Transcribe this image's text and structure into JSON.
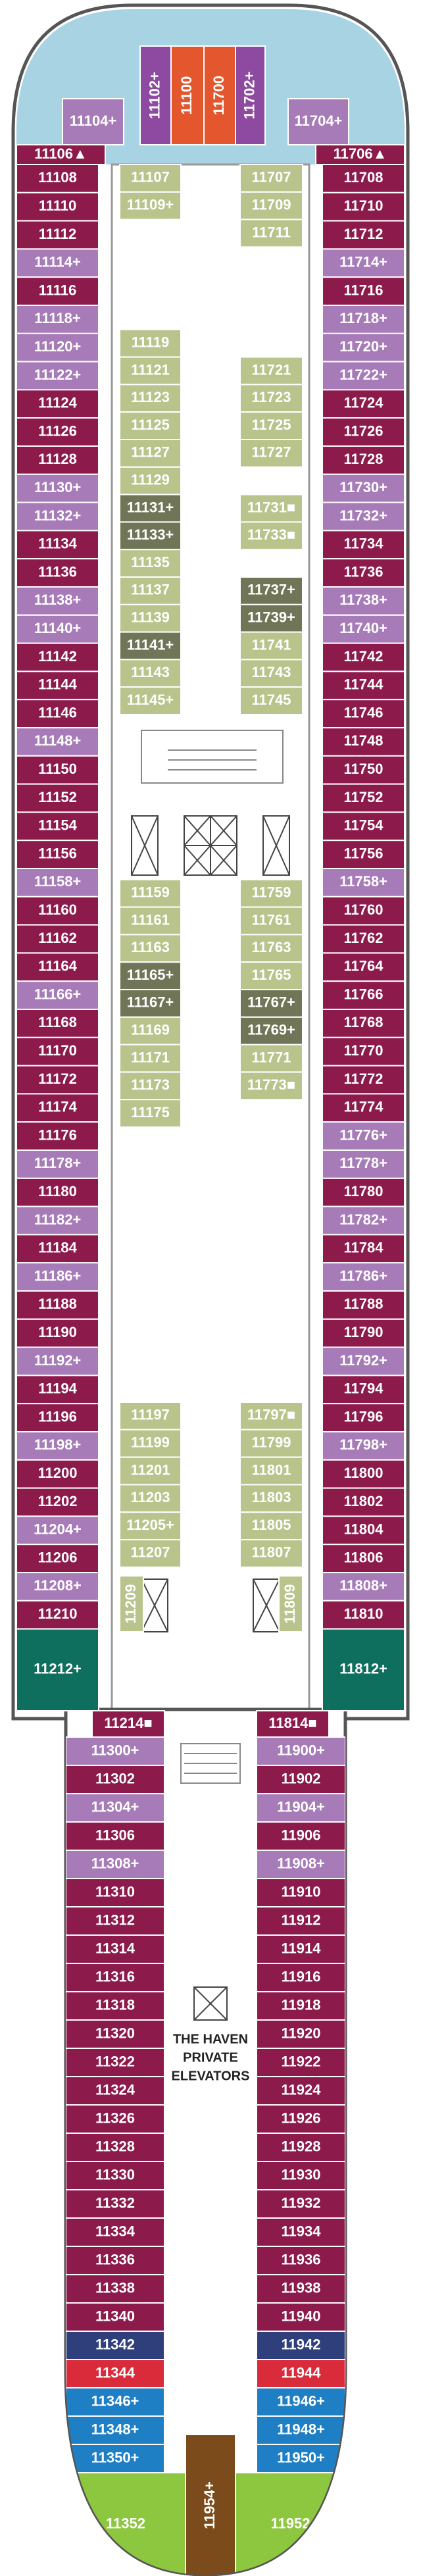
{
  "header_cabins": [
    {
      "label": "11104+",
      "color": "#a77bb8"
    },
    {
      "label": "11102+",
      "color": "#8e4aa0"
    },
    {
      "label": "11100",
      "color": "#e4572e"
    },
    {
      "label": "11700",
      "color": "#e4572e"
    },
    {
      "label": "11702+",
      "color": "#8e4aa0"
    },
    {
      "label": "11704+",
      "color": "#a77bb8"
    }
  ],
  "bow_cabins": [
    {
      "label": "11106▲",
      "color": "#8c1a4b"
    },
    {
      "label": "11706▲",
      "color": "#8c1a4b"
    }
  ],
  "port_cabins": [
    {
      "label": "11108",
      "color": "#8c1a4b"
    },
    {
      "label": "11110",
      "color": "#8c1a4b"
    },
    {
      "label": "11112",
      "color": "#8c1a4b"
    },
    {
      "label": "11114+",
      "color": "#a77bb8"
    },
    {
      "label": "11116",
      "color": "#8c1a4b"
    },
    {
      "label": "11118+",
      "color": "#a77bb8"
    },
    {
      "label": "11120+",
      "color": "#a77bb8"
    },
    {
      "label": "11122+",
      "color": "#a77bb8"
    },
    {
      "label": "11124",
      "color": "#8c1a4b"
    },
    {
      "label": "11126",
      "color": "#8c1a4b"
    },
    {
      "label": "11128",
      "color": "#8c1a4b"
    },
    {
      "label": "11130+",
      "color": "#a77bb8"
    },
    {
      "label": "11132+",
      "color": "#a77bb8"
    },
    {
      "label": "11134",
      "color": "#8c1a4b"
    },
    {
      "label": "11136",
      "color": "#8c1a4b"
    },
    {
      "label": "11138+",
      "color": "#a77bb8"
    },
    {
      "label": "11140+",
      "color": "#a77bb8"
    },
    {
      "label": "11142",
      "color": "#8c1a4b"
    },
    {
      "label": "11144",
      "color": "#8c1a4b"
    },
    {
      "label": "11146",
      "color": "#8c1a4b"
    },
    {
      "label": "11148+",
      "color": "#a77bb8"
    },
    {
      "label": "11150",
      "color": "#8c1a4b"
    },
    {
      "label": "11152",
      "color": "#8c1a4b"
    },
    {
      "label": "11154",
      "color": "#8c1a4b"
    },
    {
      "label": "11156",
      "color": "#8c1a4b"
    },
    {
      "label": "11158+",
      "color": "#a77bb8"
    },
    {
      "label": "11160",
      "color": "#8c1a4b"
    },
    {
      "label": "11162",
      "color": "#8c1a4b"
    },
    {
      "label": "11164",
      "color": "#8c1a4b"
    },
    {
      "label": "11166+",
      "color": "#a77bb8"
    },
    {
      "label": "11168",
      "color": "#8c1a4b"
    },
    {
      "label": "11170",
      "color": "#8c1a4b"
    },
    {
      "label": "11172",
      "color": "#8c1a4b"
    },
    {
      "label": "11174",
      "color": "#8c1a4b"
    },
    {
      "label": "11176",
      "color": "#8c1a4b"
    },
    {
      "label": "11178+",
      "color": "#a77bb8"
    },
    {
      "label": "11180",
      "color": "#8c1a4b"
    },
    {
      "label": "11182+",
      "color": "#a77bb8"
    },
    {
      "label": "11184",
      "color": "#8c1a4b"
    },
    {
      "label": "11186+",
      "color": "#a77bb8"
    },
    {
      "label": "11188",
      "color": "#8c1a4b"
    },
    {
      "label": "11190",
      "color": "#8c1a4b"
    },
    {
      "label": "11192+",
      "color": "#a77bb8"
    },
    {
      "label": "11194",
      "color": "#8c1a4b"
    },
    {
      "label": "11196",
      "color": "#8c1a4b"
    },
    {
      "label": "11198+",
      "color": "#a77bb8"
    },
    {
      "label": "11200",
      "color": "#8c1a4b"
    },
    {
      "label": "11202",
      "color": "#8c1a4b"
    },
    {
      "label": "11204+",
      "color": "#a77bb8"
    },
    {
      "label": "11206",
      "color": "#8c1a4b"
    },
    {
      "label": "11208+",
      "color": "#a77bb8"
    },
    {
      "label": "11210",
      "color": "#8c1a4b"
    }
  ],
  "port_end": {
    "label": "11212+",
    "color": "#0f6f5f"
  },
  "starboard_cabins": [
    {
      "label": "11708",
      "color": "#8c1a4b"
    },
    {
      "label": "11710",
      "color": "#8c1a4b"
    },
    {
      "label": "11712",
      "color": "#8c1a4b"
    },
    {
      "label": "11714+",
      "color": "#a77bb8"
    },
    {
      "label": "11716",
      "color": "#8c1a4b"
    },
    {
      "label": "11718+",
      "color": "#a77bb8"
    },
    {
      "label": "11720+",
      "color": "#a77bb8"
    },
    {
      "label": "11722+",
      "color": "#a77bb8"
    },
    {
      "label": "11724",
      "color": "#8c1a4b"
    },
    {
      "label": "11726",
      "color": "#8c1a4b"
    },
    {
      "label": "11728",
      "color": "#8c1a4b"
    },
    {
      "label": "11730+",
      "color": "#a77bb8"
    },
    {
      "label": "11732+",
      "color": "#a77bb8"
    },
    {
      "label": "11734",
      "color": "#8c1a4b"
    },
    {
      "label": "11736",
      "color": "#8c1a4b"
    },
    {
      "label": "11738+",
      "color": "#a77bb8"
    },
    {
      "label": "11740+",
      "color": "#a77bb8"
    },
    {
      "label": "11742",
      "color": "#8c1a4b"
    },
    {
      "label": "11744",
      "color": "#8c1a4b"
    },
    {
      "label": "11746",
      "color": "#8c1a4b"
    },
    {
      "label": "11748",
      "color": "#8c1a4b"
    },
    {
      "label": "11750",
      "color": "#8c1a4b"
    },
    {
      "label": "11752",
      "color": "#8c1a4b"
    },
    {
      "label": "11754",
      "color": "#8c1a4b"
    },
    {
      "label": "11756",
      "color": "#8c1a4b"
    },
    {
      "label": "11758+",
      "color": "#a77bb8"
    },
    {
      "label": "11760",
      "color": "#8c1a4b"
    },
    {
      "label": "11762",
      "color": "#8c1a4b"
    },
    {
      "label": "11764",
      "color": "#8c1a4b"
    },
    {
      "label": "11766",
      "color": "#8c1a4b"
    },
    {
      "label": "11768",
      "color": "#8c1a4b"
    },
    {
      "label": "11770",
      "color": "#8c1a4b"
    },
    {
      "label": "11772",
      "color": "#8c1a4b"
    },
    {
      "label": "11774",
      "color": "#8c1a4b"
    },
    {
      "label": "11776+",
      "color": "#a77bb8"
    },
    {
      "label": "11778+",
      "color": "#a77bb8"
    },
    {
      "label": "11780",
      "color": "#8c1a4b"
    },
    {
      "label": "11782+",
      "color": "#a77bb8"
    },
    {
      "label": "11784",
      "color": "#8c1a4b"
    },
    {
      "label": "11786+",
      "color": "#a77bb8"
    },
    {
      "label": "11788",
      "color": "#8c1a4b"
    },
    {
      "label": "11790",
      "color": "#8c1a4b"
    },
    {
      "label": "11792+",
      "color": "#a77bb8"
    },
    {
      "label": "11794",
      "color": "#8c1a4b"
    },
    {
      "label": "11796",
      "color": "#8c1a4b"
    },
    {
      "label": "11798+",
      "color": "#a77bb8"
    },
    {
      "label": "11800",
      "color": "#8c1a4b"
    },
    {
      "label": "11802",
      "color": "#8c1a4b"
    },
    {
      "label": "11804",
      "color": "#8c1a4b"
    },
    {
      "label": "11806",
      "color": "#8c1a4b"
    },
    {
      "label": "11808+",
      "color": "#a77bb8"
    },
    {
      "label": "11810",
      "color": "#8c1a4b"
    }
  ],
  "starboard_end": {
    "label": "11812+",
    "color": "#0f6f5f"
  },
  "port_inner_cabins": [
    {
      "label": "11107",
      "color": "#b8c48c"
    },
    {
      "label": "11109+",
      "color": "#b8c48c"
    },
    {
      "label": "11119",
      "color": "#b8c48c"
    },
    {
      "label": "11121",
      "color": "#b8c48c"
    },
    {
      "label": "11123",
      "color": "#b8c48c"
    },
    {
      "label": "11125",
      "color": "#b8c48c"
    },
    {
      "label": "11127",
      "color": "#b8c48c"
    },
    {
      "label": "11129",
      "color": "#b8c48c"
    },
    {
      "label": "11131+",
      "color": "#6f7556"
    },
    {
      "label": "11133+",
      "color": "#6f7556"
    },
    {
      "label": "11135",
      "color": "#b8c48c"
    },
    {
      "label": "11137",
      "color": "#b8c48c"
    },
    {
      "label": "11139",
      "color": "#b8c48c"
    },
    {
      "label": "11141+",
      "color": "#6f7556"
    },
    {
      "label": "11143",
      "color": "#b8c48c"
    },
    {
      "label": "11145+",
      "color": "#b8c48c"
    },
    {
      "label": "11159",
      "color": "#b8c48c"
    },
    {
      "label": "11161",
      "color": "#b8c48c"
    },
    {
      "label": "11163",
      "color": "#b8c48c"
    },
    {
      "label": "11165+",
      "color": "#6f7556"
    },
    {
      "label": "11167+",
      "color": "#6f7556"
    },
    {
      "label": "11169",
      "color": "#b8c48c"
    },
    {
      "label": "11171",
      "color": "#b8c48c"
    },
    {
      "label": "11173",
      "color": "#b8c48c"
    },
    {
      "label": "11175",
      "color": "#b8c48c"
    },
    {
      "label": "11197",
      "color": "#b8c48c"
    },
    {
      "label": "11199",
      "color": "#b8c48c"
    },
    {
      "label": "11201",
      "color": "#b8c48c"
    },
    {
      "label": "11203",
      "color": "#b8c48c"
    },
    {
      "label": "11205+",
      "color": "#b8c48c"
    },
    {
      "label": "11207",
      "color": "#b8c48c"
    }
  ],
  "port_inner_end": {
    "label": "11209",
    "color": "#b8c48c"
  },
  "starboard_inner_cabins": [
    {
      "label": "11707",
      "color": "#b8c48c"
    },
    {
      "label": "11709",
      "color": "#b8c48c"
    },
    {
      "label": "11711",
      "color": "#b8c48c"
    },
    {
      "label": "11721",
      "color": "#b8c48c"
    },
    {
      "label": "11723",
      "color": "#b8c48c"
    },
    {
      "label": "11725",
      "color": "#b8c48c"
    },
    {
      "label": "11727",
      "color": "#b8c48c"
    },
    {
      "label": "11731■",
      "color": "#b8c48c"
    },
    {
      "label": "11733■",
      "color": "#b8c48c"
    },
    {
      "label": "11737+",
      "color": "#6f7556"
    },
    {
      "label": "11739+",
      "color": "#6f7556"
    },
    {
      "label": "11741",
      "color": "#b8c48c"
    },
    {
      "label": "11743",
      "color": "#b8c48c"
    },
    {
      "label": "11745",
      "color": "#b8c48c"
    },
    {
      "label": "11759",
      "color": "#b8c48c"
    },
    {
      "label": "11761",
      "color": "#b8c48c"
    },
    {
      "label": "11763",
      "color": "#b8c48c"
    },
    {
      "label": "11765",
      "color": "#b8c48c"
    },
    {
      "label": "11767+",
      "color": "#6f7556"
    },
    {
      "label": "11769+",
      "color": "#6f7556"
    },
    {
      "label": "11771",
      "color": "#b8c48c"
    },
    {
      "label": "11773■",
      "color": "#b8c48c"
    },
    {
      "label": "11797■",
      "color": "#b8c48c"
    },
    {
      "label": "11799",
      "color": "#b8c48c"
    },
    {
      "label": "11801",
      "color": "#b8c48c"
    },
    {
      "label": "11803",
      "color": "#b8c48c"
    },
    {
      "label": "11805",
      "color": "#b8c48c"
    },
    {
      "label": "11807",
      "color": "#b8c48c"
    }
  ],
  "starboard_inner_end": {
    "label": "11809",
    "color": "#b8c48c"
  },
  "aft_port_top": {
    "label": "11214■",
    "color": "#8c1a4b"
  },
  "aft_starboard_top": {
    "label": "11814■",
    "color": "#8c1a4b"
  },
  "aft_port_cabins": [
    {
      "label": "11300+",
      "color": "#a77bb8"
    },
    {
      "label": "11302",
      "color": "#8c1a4b"
    },
    {
      "label": "11304+",
      "color": "#a77bb8"
    },
    {
      "label": "11306",
      "color": "#8c1a4b"
    },
    {
      "label": "11308+",
      "color": "#a77bb8"
    },
    {
      "label": "11310",
      "color": "#8c1a4b"
    },
    {
      "label": "11312",
      "color": "#8c1a4b"
    },
    {
      "label": "11314",
      "color": "#8c1a4b"
    },
    {
      "label": "11316",
      "color": "#8c1a4b"
    },
    {
      "label": "11318",
      "color": "#8c1a4b"
    },
    {
      "label": "11320",
      "color": "#8c1a4b"
    },
    {
      "label": "11322",
      "color": "#8c1a4b"
    },
    {
      "label": "11324",
      "color": "#8c1a4b"
    },
    {
      "label": "11326",
      "color": "#8c1a4b"
    },
    {
      "label": "11328",
      "color": "#8c1a4b"
    },
    {
      "label": "11330",
      "color": "#8c1a4b"
    },
    {
      "label": "11332",
      "color": "#8c1a4b"
    },
    {
      "label": "11334",
      "color": "#8c1a4b"
    },
    {
      "label": "11336",
      "color": "#8c1a4b"
    },
    {
      "label": "11338",
      "color": "#8c1a4b"
    },
    {
      "label": "11340",
      "color": "#8c1a4b"
    },
    {
      "label": "11342",
      "color": "#2e3f7c"
    },
    {
      "label": "11344",
      "color": "#d92b3a"
    },
    {
      "label": "11346+",
      "color": "#1f7fc4"
    },
    {
      "label": "11348+",
      "color": "#1f7fc4"
    },
    {
      "label": "11350+",
      "color": "#1f7fc4"
    }
  ],
  "aft_port_end": {
    "label": "11352",
    "color": "#8dc63f"
  },
  "aft_starboard_cabins": [
    {
      "label": "11900+",
      "color": "#a77bb8"
    },
    {
      "label": "11902",
      "color": "#8c1a4b"
    },
    {
      "label": "11904+",
      "color": "#a77bb8"
    },
    {
      "label": "11906",
      "color": "#8c1a4b"
    },
    {
      "label": "11908+",
      "color": "#a77bb8"
    },
    {
      "label": "11910",
      "color": "#8c1a4b"
    },
    {
      "label": "11912",
      "color": "#8c1a4b"
    },
    {
      "label": "11914",
      "color": "#8c1a4b"
    },
    {
      "label": "11916",
      "color": "#8c1a4b"
    },
    {
      "label": "11918",
      "color": "#8c1a4b"
    },
    {
      "label": "11920",
      "color": "#8c1a4b"
    },
    {
      "label": "11922",
      "color": "#8c1a4b"
    },
    {
      "label": "11924",
      "color": "#8c1a4b"
    },
    {
      "label": "11926",
      "color": "#8c1a4b"
    },
    {
      "label": "11928",
      "color": "#8c1a4b"
    },
    {
      "label": "11930",
      "color": "#8c1a4b"
    },
    {
      "label": "11932",
      "color": "#8c1a4b"
    },
    {
      "label": "11934",
      "color": "#8c1a4b"
    },
    {
      "label": "11936",
      "color": "#8c1a4b"
    },
    {
      "label": "11938",
      "color": "#8c1a4b"
    },
    {
      "label": "11940",
      "color": "#8c1a4b"
    },
    {
      "label": "11942",
      "color": "#2e3f7c"
    },
    {
      "label": "11944",
      "color": "#d92b3a"
    },
    {
      "label": "11946+",
      "color": "#1f7fc4"
    },
    {
      "label": "11948+",
      "color": "#1f7fc4"
    },
    {
      "label": "11950+",
      "color": "#1f7fc4"
    }
  ],
  "aft_starboard_end": {
    "label": "11952",
    "color": "#8dc63f"
  },
  "stern_cabin": {
    "label": "11954+",
    "color": "#7b4b1c"
  },
  "elevator_label": [
    "THE HAVEN",
    "PRIVATE",
    "ELEVATORS"
  ]
}
